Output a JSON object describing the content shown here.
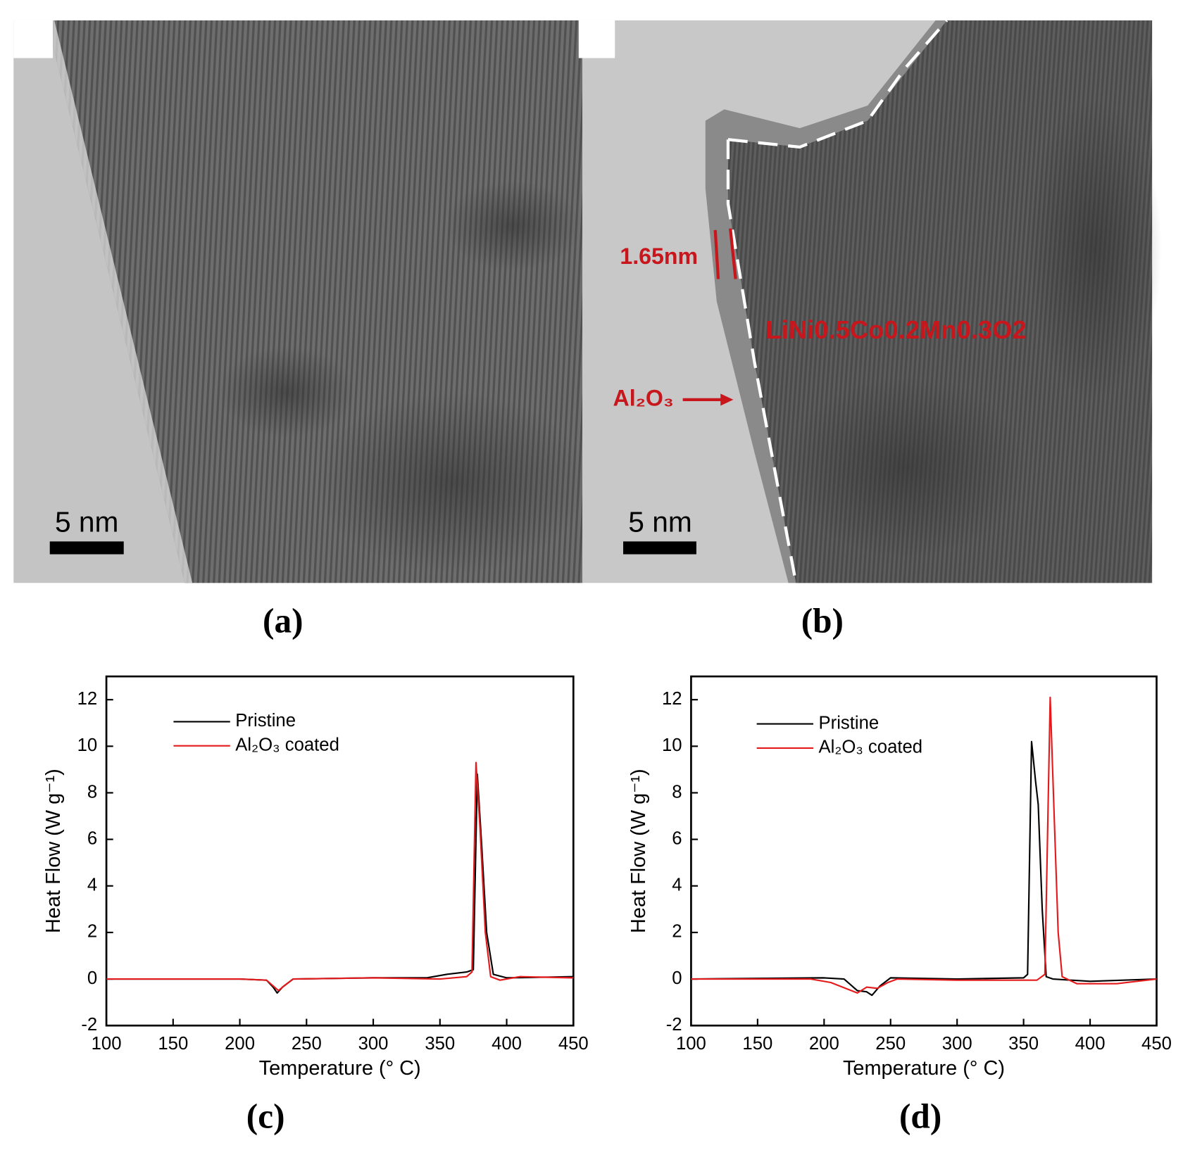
{
  "panels": [
    {
      "label": "(a)",
      "scale_bar": "5 nm"
    },
    {
      "label": "(b)",
      "scale_bar": "5 nm",
      "thickness": "1.65nm",
      "bulk": "LiNi0.5Co0.2Mn0.3O2",
      "coating": "Al₂O₃"
    }
  ],
  "chart_data": [
    {
      "type": "line",
      "label": "(c)",
      "xlabel": "Temperature (° C)",
      "ylabel": "Heat Flow (W g⁻¹)",
      "xlim": [
        100,
        450
      ],
      "ylim": [
        -2,
        13
      ],
      "xticks": [
        100,
        150,
        200,
        250,
        300,
        350,
        400,
        450
      ],
      "yticks": [
        -2,
        0,
        2,
        4,
        6,
        8,
        10,
        12
      ],
      "legend": "upper left",
      "series": [
        {
          "name": "Pristine",
          "color": "#000000",
          "x": [
            100,
            200,
            220,
            225,
            228,
            232,
            240,
            300,
            340,
            355,
            370,
            375,
            378,
            381,
            385,
            390,
            400,
            450
          ],
          "values": [
            0,
            0,
            -0.05,
            -0.35,
            -0.6,
            -0.35,
            0,
            0.05,
            0.05,
            0.2,
            0.3,
            0.4,
            8.8,
            6,
            2,
            0.2,
            0.05,
            0.1
          ]
        },
        {
          "name": "Al₂O₃ coated",
          "color": "#e41a1c",
          "x": [
            100,
            200,
            220,
            225,
            229,
            233,
            240,
            300,
            350,
            370,
            374,
            377,
            380,
            384,
            388,
            395,
            410,
            450
          ],
          "values": [
            0,
            0,
            -0.05,
            -0.3,
            -0.5,
            -0.3,
            0,
            0.05,
            0,
            0.1,
            0.3,
            9.3,
            6.5,
            2,
            0.1,
            -0.05,
            0.1,
            0.05
          ]
        }
      ]
    },
    {
      "type": "line",
      "label": "(d)",
      "xlabel": "Temperature (° C)",
      "ylabel": "Heat Flow (W g⁻¹)",
      "xlim": [
        100,
        450
      ],
      "ylim": [
        -2,
        13
      ],
      "xticks": [
        100,
        150,
        200,
        250,
        300,
        350,
        400,
        450
      ],
      "yticks": [
        -2,
        0,
        2,
        4,
        6,
        8,
        10,
        12
      ],
      "legend": "upper left",
      "series": [
        {
          "name": "Pristine",
          "color": "#000000",
          "x": [
            100,
            200,
            215,
            225,
            232,
            236,
            242,
            250,
            300,
            350,
            353,
            356,
            359,
            361,
            364,
            367,
            372,
            400,
            450
          ],
          "values": [
            0,
            0.05,
            0,
            -0.5,
            -0.55,
            -0.7,
            -0.3,
            0.05,
            0,
            0.05,
            0.2,
            10.2,
            8.5,
            7.5,
            3,
            0.1,
            0,
            -0.1,
            0
          ]
        },
        {
          "name": "Al₂O₃ coated",
          "color": "#e41a1c",
          "x": [
            100,
            190,
            205,
            225,
            232,
            240,
            248,
            255,
            300,
            360,
            366,
            370,
            373,
            376,
            379,
            390,
            420,
            450
          ],
          "values": [
            0,
            0,
            -0.15,
            -0.6,
            -0.35,
            -0.4,
            -0.15,
            0,
            -0.05,
            -0.05,
            0.2,
            12.1,
            7,
            2,
            0.1,
            -0.2,
            -0.2,
            0
          ]
        }
      ]
    }
  ]
}
